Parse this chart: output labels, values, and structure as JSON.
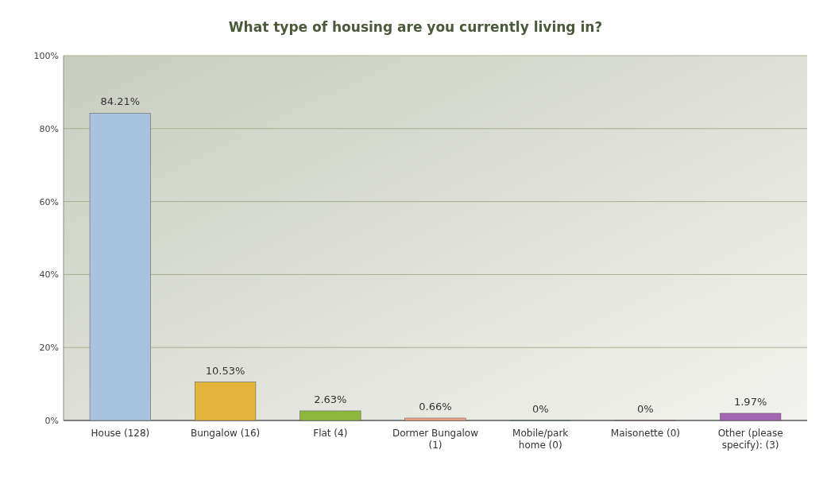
{
  "chart_data": {
    "type": "bar",
    "title": "What type of housing are you currently living in?",
    "categories": [
      "House (128)",
      "Bungalow (16)",
      "Flat (4)",
      "Dormer Bungalow (1)",
      "Mobile/park home (0)",
      "Maisonette (0)",
      "Other (please specify): (3)"
    ],
    "values": [
      84.21,
      10.53,
      2.63,
      0.66,
      0,
      0,
      1.97
    ],
    "colors": [
      "#a9c3de",
      "#e2b53a",
      "#8db83e",
      "#f2a585",
      "#5bbcc4",
      "#e48c96",
      "#a466b3"
    ],
    "value_labels": [
      "84.21%",
      "10.53%",
      "2.63%",
      "0.66%",
      "0%",
      "0%",
      "1.97%"
    ],
    "ylim": [
      0,
      100
    ],
    "yticks": [
      {
        "value": 0,
        "label": "0%"
      },
      {
        "value": 20,
        "label": "20%"
      },
      {
        "value": 40,
        "label": "40%"
      },
      {
        "value": 60,
        "label": "60%"
      },
      {
        "value": 80,
        "label": "80%"
      },
      {
        "value": 100,
        "label": "100%"
      }
    ],
    "grid": "y"
  }
}
